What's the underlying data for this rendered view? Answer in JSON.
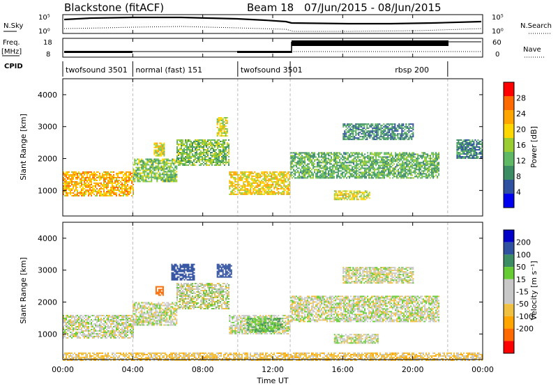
{
  "header": {
    "radar": "Blackstone (fitACF)",
    "beam": "Beam 18",
    "date_range": "07/Jun/2015 - 08/Jun/2015"
  },
  "nsky_panel": {
    "left_label": "N.Sky",
    "right_label": "N.Search",
    "left_ticks": [
      "10^5",
      "10^0"
    ],
    "right_ticks": [
      "10^5",
      "10^0"
    ]
  },
  "freq_panel": {
    "left_label_line1": "Freq.",
    "left_label_line2": "[MHz]",
    "right_label": "Nave",
    "left_ticks": [
      "18",
      "8"
    ],
    "right_ticks": [
      "60",
      "0"
    ]
  },
  "cpid_panel": {
    "label": "CPID",
    "segments": [
      {
        "name": "twofsound 3501",
        "start_h": 0,
        "end_h": 4
      },
      {
        "name": "normal (fast) 151",
        "start_h": 4,
        "end_h": 10
      },
      {
        "name": "twofsound 3501",
        "start_h": 10,
        "end_h": 13
      },
      {
        "name": "rbsp 200",
        "start_h": 13,
        "end_h": 22
      }
    ]
  },
  "time_axis": {
    "label": "Time UT",
    "ticks": [
      "00:00",
      "04:00",
      "08:00",
      "12:00",
      "16:00",
      "20:00",
      "00:00"
    ]
  },
  "colors": {
    "power": [
      "#0000f0",
      "#3050a0",
      "#3c8c64",
      "#5fb864",
      "#9acd32",
      "#ffd700",
      "#ffa500",
      "#ff6a00",
      "#ff0000"
    ],
    "velocity": [
      "#ff0000",
      "#ff6a00",
      "#ffa500",
      "#f0c040",
      "#c8c8c8",
      "#c8c8c8",
      "#66cc33",
      "#3c8c64",
      "#3050a0",
      "#0000c8"
    ]
  },
  "chart_data": [
    {
      "type": "heatmap",
      "panel": "power",
      "ylabel": "Slant Range [km]",
      "xlabel": "",
      "xlim_hours": [
        0,
        24
      ],
      "ylim": [
        200,
        4500
      ],
      "yticks": [
        "1000",
        "2000",
        "3000",
        "4000"
      ],
      "colorbar_label": "Power [dB]",
      "colorbar_ticks": [
        "28",
        "24",
        "20",
        "16",
        "12",
        "8",
        "4"
      ],
      "colorbar_range": [
        0,
        32
      ],
      "regions": [
        {
          "t0": 0,
          "t1": 4,
          "r0": 850,
          "r1": 1600,
          "power": 22
        },
        {
          "t0": 4,
          "t1": 6.5,
          "r0": 1300,
          "r1": 2000,
          "power": 14
        },
        {
          "t0": 5.2,
          "t1": 5.8,
          "r0": 2100,
          "r1": 2500,
          "power": 18
        },
        {
          "t0": 6.5,
          "t1": 9.5,
          "r0": 1800,
          "r1": 2600,
          "power": 14
        },
        {
          "t0": 8.8,
          "t1": 9.4,
          "r0": 2700,
          "r1": 3300,
          "power": 18
        },
        {
          "t0": 9.5,
          "t1": 13,
          "r0": 900,
          "r1": 1600,
          "power": 20
        },
        {
          "t0": 13,
          "t1": 21.5,
          "r0": 1400,
          "r1": 2200,
          "power": 12
        },
        {
          "t0": 15.5,
          "t1": 17.5,
          "r0": 700,
          "r1": 1000,
          "power": 18
        },
        {
          "t0": 16,
          "t1": 20,
          "r0": 2600,
          "r1": 3100,
          "power": 9
        },
        {
          "t0": 22.5,
          "t1": 24,
          "r0": 2000,
          "r1": 2600,
          "power": 9
        }
      ]
    },
    {
      "type": "heatmap",
      "panel": "velocity",
      "ylabel": "Slant Range [km]",
      "xlabel": "Time UT",
      "xlim_hours": [
        0,
        24
      ],
      "ylim": [
        200,
        4500
      ],
      "yticks": [
        "1000",
        "2000",
        "3000",
        "4000"
      ],
      "colorbar_label": "Velocity [m s^-1]",
      "colorbar_ticks": [
        "200",
        "100",
        "50",
        "15",
        "-15",
        "-50",
        "-100",
        "-200"
      ],
      "regions": [
        {
          "t0": 0,
          "t1": 4,
          "r0": 900,
          "r1": 1600,
          "velocity": 0
        },
        {
          "t0": 4,
          "t1": 6.5,
          "r0": 1300,
          "r1": 2000,
          "velocity": 0
        },
        {
          "t0": 5.3,
          "t1": 5.7,
          "r0": 2200,
          "r1": 2500,
          "velocity": -150
        },
        {
          "t0": 6.5,
          "t1": 9.5,
          "r0": 1800,
          "r1": 2600,
          "velocity": 0
        },
        {
          "t0": 6.2,
          "t1": 7.5,
          "r0": 2700,
          "r1": 3200,
          "velocity": 150
        },
        {
          "t0": 8.8,
          "t1": 9.6,
          "r0": 2800,
          "r1": 3200,
          "velocity": 150
        },
        {
          "t0": 9.5,
          "t1": 13,
          "r0": 1000,
          "r1": 1600,
          "velocity": 0
        },
        {
          "t0": 10.5,
          "t1": 12.5,
          "r0": 1100,
          "r1": 1500,
          "velocity": 40
        },
        {
          "t0": 13,
          "t1": 21.5,
          "r0": 1400,
          "r1": 2200,
          "velocity": 0
        },
        {
          "t0": 15.5,
          "t1": 18,
          "r0": 700,
          "r1": 1000,
          "velocity": 0
        },
        {
          "t0": 16,
          "t1": 20,
          "r0": 2600,
          "r1": 3100,
          "velocity": 0
        },
        {
          "t0": 0,
          "t1": 24,
          "r0": 200,
          "r1": 420,
          "velocity": -30
        }
      ]
    }
  ]
}
